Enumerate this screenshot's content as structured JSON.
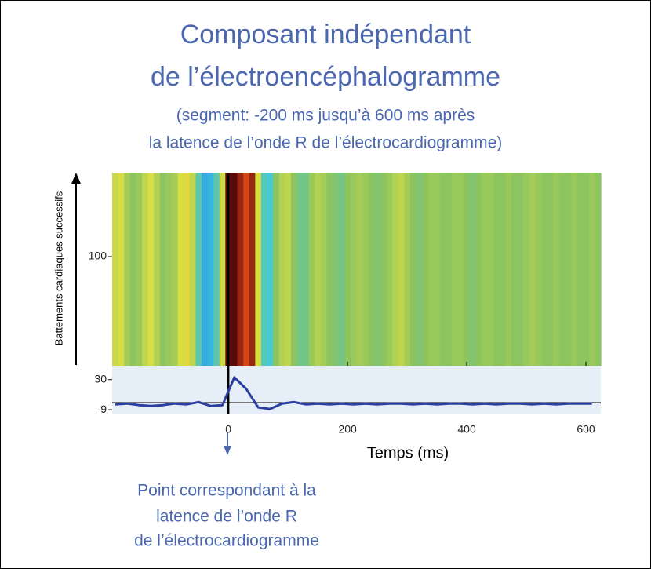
{
  "header": {
    "title_lines": [
      "Composant indépendant",
      "de l’électroencéphalogramme"
    ],
    "subtitle_lines": [
      "(segment: -200 ms jusqu’à 600 ms après",
      "la latence de l’onde R de l’électrocardiogramme)"
    ]
  },
  "annotation": {
    "lines": [
      "Point correspondant à la",
      "latence de l’onde R",
      "de l’électrocardiogramme"
    ]
  },
  "chart_data": [
    {
      "type": "heatmap",
      "ylabel": "Battements cardiaques successifs",
      "x": [
        -190,
        -180,
        -170,
        -160,
        -150,
        -140,
        -130,
        -120,
        -110,
        -100,
        -90,
        -80,
        -70,
        -60,
        -50,
        -40,
        -30,
        -20,
        -10,
        0,
        10,
        20,
        30,
        40,
        50,
        60,
        70,
        80,
        90,
        100,
        110,
        120,
        130,
        140,
        150,
        160,
        170,
        180,
        190,
        200,
        210,
        220,
        230,
        240,
        250,
        260,
        270,
        280,
        290,
        300,
        310,
        320,
        330,
        340,
        350,
        360,
        370,
        380,
        390,
        400,
        410,
        420,
        430,
        440,
        450,
        460,
        470,
        480,
        490,
        500,
        510,
        520,
        530,
        540,
        550,
        560,
        570,
        580,
        590,
        600,
        610,
        620
      ],
      "values": [
        0.25,
        0.3,
        0.1,
        0,
        0.05,
        0.2,
        0.3,
        0.15,
        0,
        0.05,
        0.1,
        0.3,
        0.35,
        0.2,
        -0.2,
        -0.5,
        -0.45,
        -0.2,
        0.25,
        1,
        1,
        0.85,
        0.7,
        0.85,
        0.3,
        -0.25,
        -0.3,
        0,
        0.15,
        0.2,
        0,
        -0.1,
        -0.1,
        0.05,
        0.15,
        0.1,
        0,
        -0.05,
        -0.1,
        0,
        0.05,
        0.1,
        0.05,
        0,
        -0.05,
        0,
        0.05,
        0.15,
        0.2,
        0.1,
        0,
        -0.05,
        0,
        0.05,
        0.05,
        0,
        0,
        0.05,
        0.05,
        0,
        -0.05,
        0,
        0.05,
        0.05,
        0,
        0,
        0.05,
        0,
        0,
        0.05,
        0.1,
        0.05,
        0,
        0,
        0.05,
        0,
        0,
        0.05,
        0,
        0,
        0.05,
        0
      ],
      "xlim": [
        -195,
        625
      ],
      "ylim": [
        0,
        177
      ],
      "yticks": [
        100
      ],
      "clim": [
        -1,
        1
      ],
      "colors": [
        "#1a2a9a",
        "#2a8fe0",
        "#40c8e0",
        "#8cc460",
        "#e0e040",
        "#e04a18",
        "#5a0a0a"
      ]
    },
    {
      "type": "line",
      "xlabel": "Temps (ms)",
      "x": [
        -190,
        -170,
        -150,
        -130,
        -110,
        -90,
        -70,
        -50,
        -30,
        -10,
        10,
        30,
        50,
        70,
        90,
        110,
        130,
        150,
        170,
        190,
        210,
        230,
        250,
        270,
        290,
        310,
        330,
        350,
        370,
        390,
        410,
        430,
        450,
        470,
        490,
        510,
        530,
        550,
        570,
        590,
        610
      ],
      "series": [
        {
          "color": "#2b3fa0",
          "values": [
            -2,
            -1,
            -3,
            -4,
            -3,
            -1,
            -2,
            1,
            -4,
            -3,
            33,
            18,
            -6,
            -8,
            -1,
            1,
            -2,
            -1,
            -2,
            -1,
            -2,
            -1,
            -2,
            -1,
            -1,
            -2,
            -1,
            -2,
            -1,
            -1,
            -2,
            -1,
            -2,
            -1,
            -1,
            -2,
            -1,
            -2,
            -1,
            -1,
            -1
          ]
        }
      ],
      "xlim": [
        -195,
        625
      ],
      "ylim": [
        -15,
        48
      ],
      "yticks": [
        30,
        -9
      ],
      "xticks": [
        0,
        200,
        400,
        600
      ],
      "background": "#e6eef7"
    }
  ]
}
